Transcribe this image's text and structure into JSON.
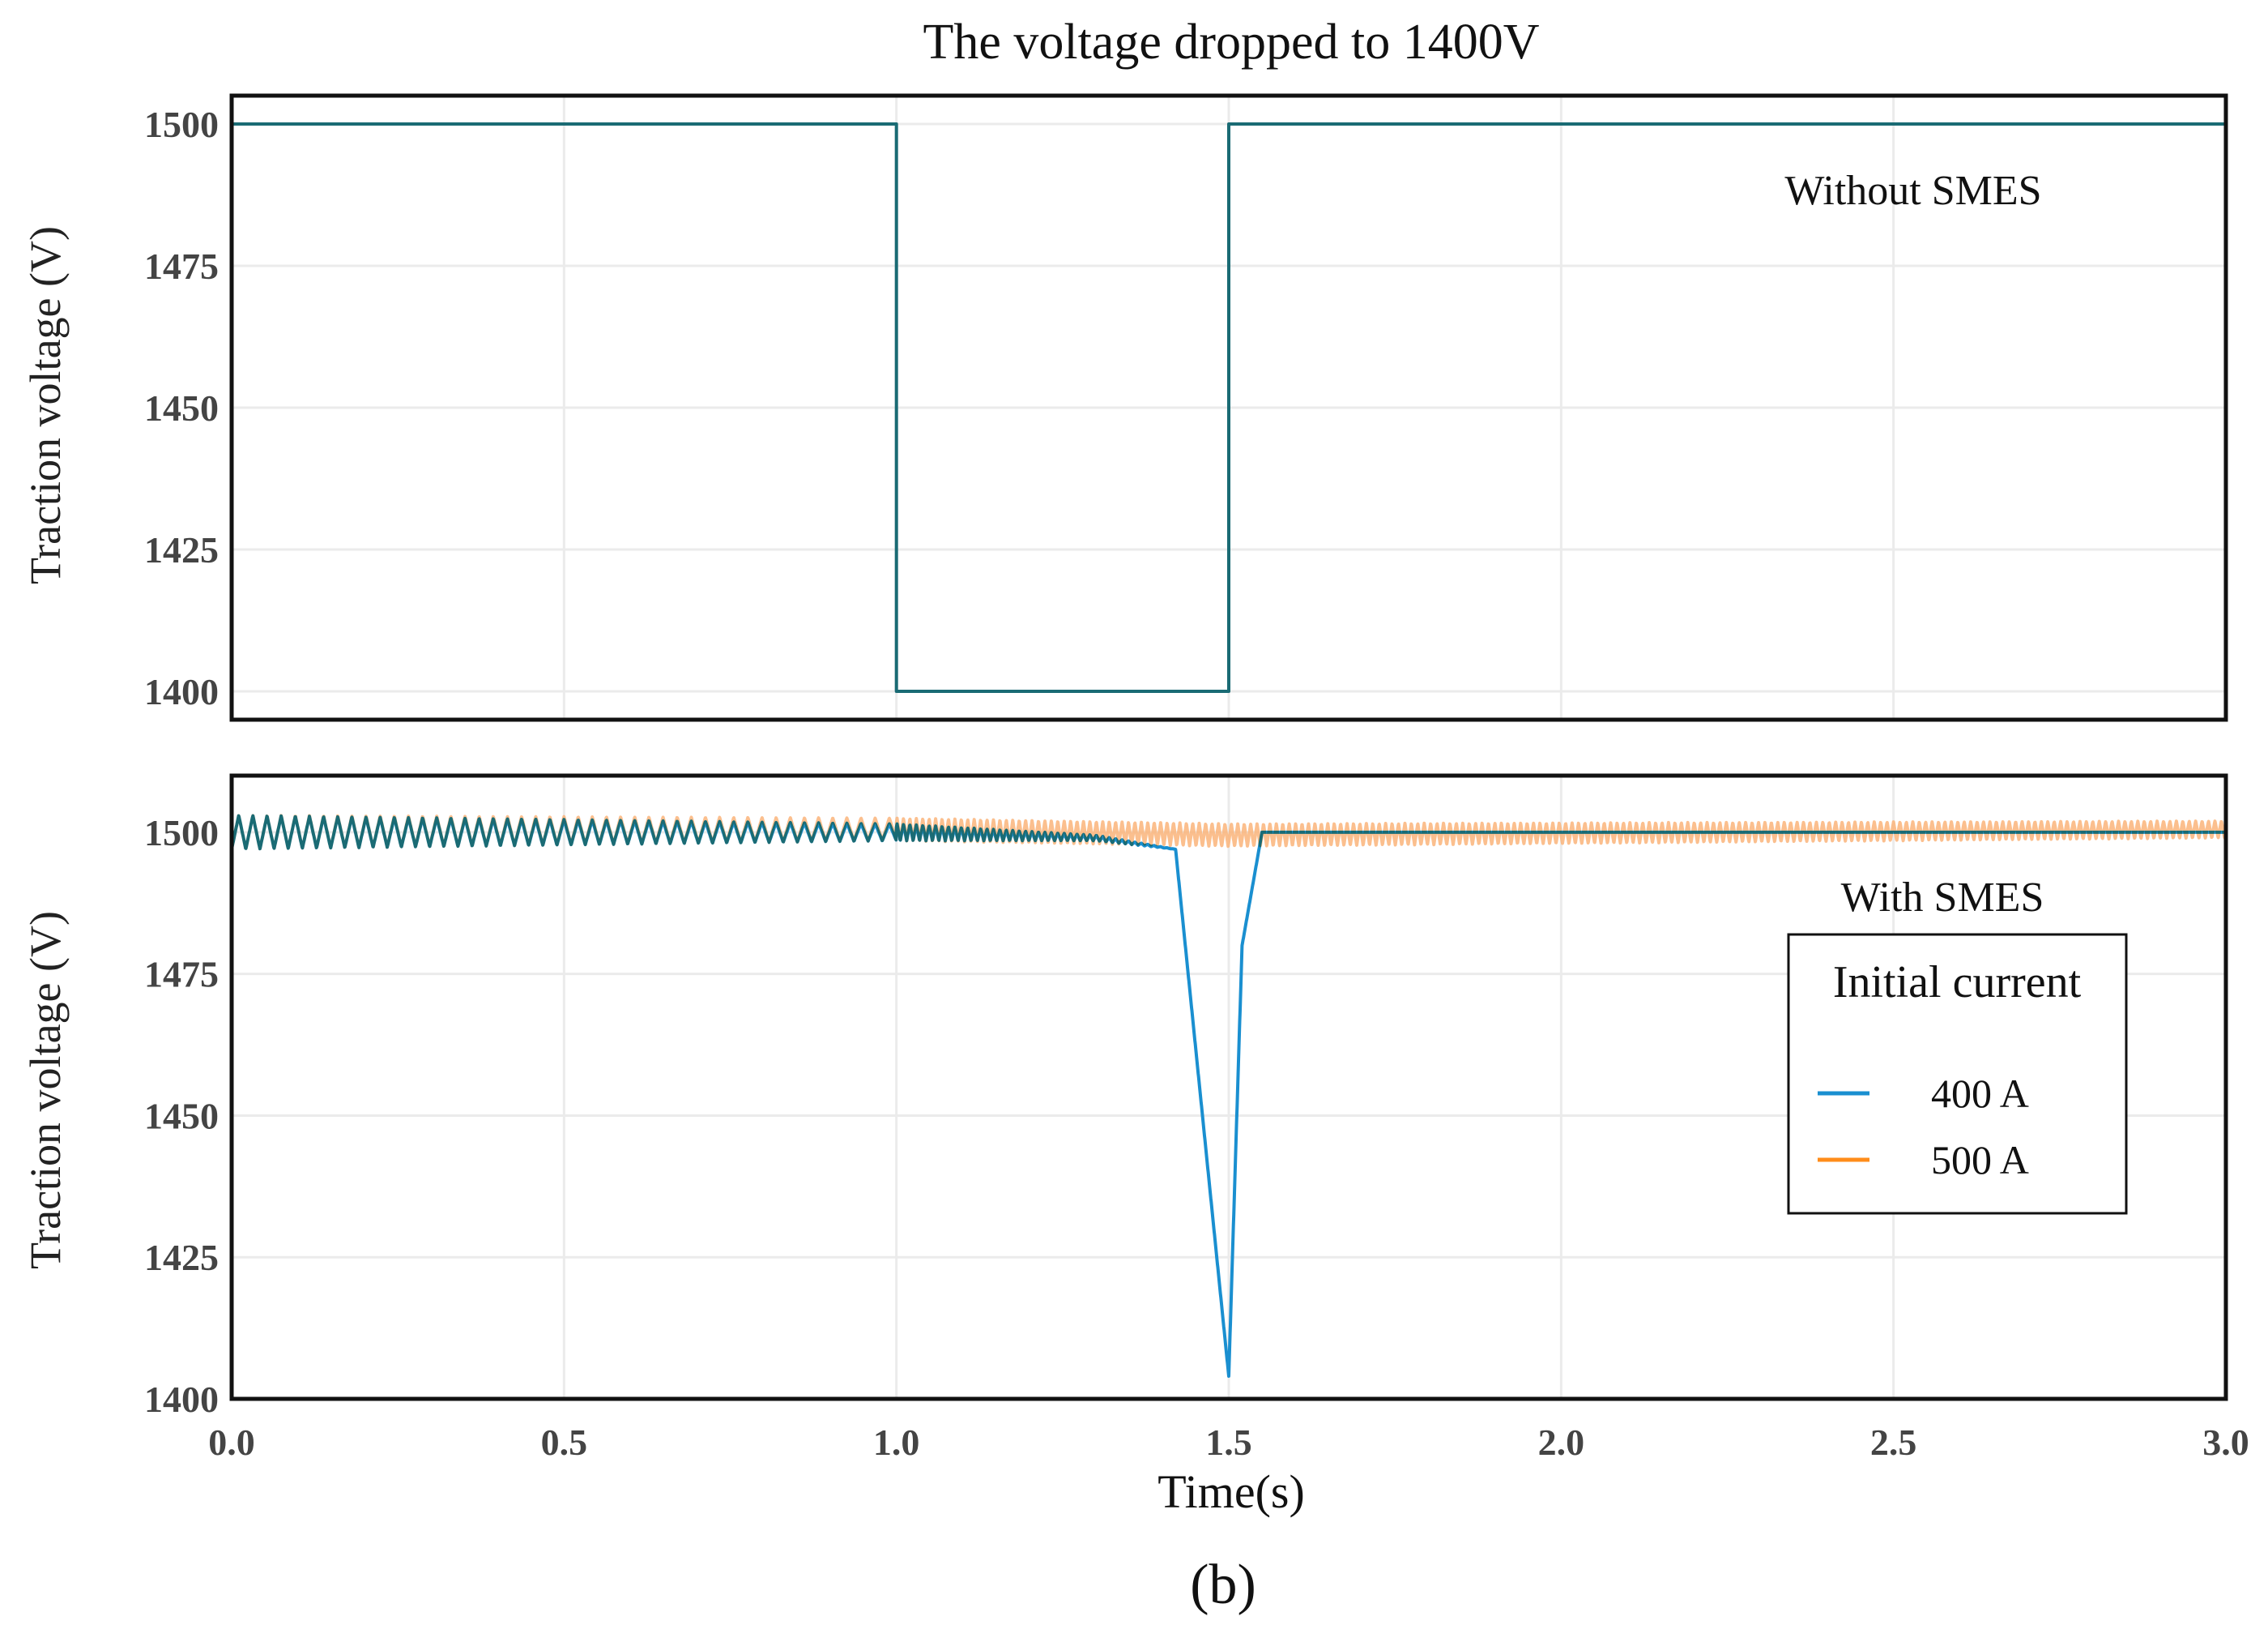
{
  "chart_data": [
    {
      "type": "line",
      "title": "The voltage dropped to 1400V",
      "annotation": "Without SMES",
      "xlabel": "Time(s)",
      "ylabel": "Traction voltage (V)",
      "xlim": [
        0,
        3.0
      ],
      "ylim": [
        1395,
        1505
      ],
      "xticks": [
        "0.0",
        "0.5",
        "1.0",
        "1.5",
        "2.0",
        "2.5",
        "3.0"
      ],
      "xtick_values": [
        0,
        0.5,
        1.0,
        1.5,
        2.0,
        2.5,
        3.0
      ],
      "yticks": [
        "1400",
        "1425",
        "1450",
        "1475",
        "1500"
      ],
      "ytick_values": [
        1400,
        1425,
        1450,
        1475,
        1500
      ],
      "grid": true,
      "series": [
        {
          "name": "400 A",
          "color": "#1a8fd0",
          "x": [
            0,
            1.0,
            1.0,
            1.5,
            1.5,
            3.0
          ],
          "y": [
            1500,
            1500,
            1400,
            1400,
            1500,
            1500
          ]
        },
        {
          "name": "500 A",
          "color": "#fbb47a",
          "x": [
            0,
            1.0,
            1.0,
            1.5,
            1.5,
            3.0
          ],
          "y": [
            1500,
            1500,
            1400,
            1400,
            1500,
            1500
          ]
        }
      ]
    },
    {
      "type": "line",
      "annotation": "With SMES",
      "xlabel": "Time(s)",
      "ylabel": "Traction voltage (V)",
      "xlim": [
        0,
        3.0
      ],
      "ylim": [
        1400,
        1510
      ],
      "xticks": [
        "0.0",
        "0.5",
        "1.0",
        "1.5",
        "2.0",
        "2.5",
        "3.0"
      ],
      "xtick_values": [
        0,
        0.5,
        1.0,
        1.5,
        2.0,
        2.5,
        3.0
      ],
      "yticks": [
        "1400",
        "1425",
        "1450",
        "1475",
        "1500"
      ],
      "ytick_values": [
        1400,
        1425,
        1450,
        1475,
        1500
      ],
      "grid": true,
      "legend": {
        "title": "Initial current",
        "placement": "right"
      },
      "series": [
        {
          "name": "400 A",
          "color": "#1a8fd0",
          "x": [
            0,
            1.0,
            1.3,
            1.42,
            1.5,
            1.52,
            1.55,
            3.0
          ],
          "y": [
            1500,
            1500,
            1499,
            1497,
            1404,
            1480,
            1500,
            1500
          ],
          "ripple_amplitude": [
            3,
            1.5,
            0.5,
            0,
            0,
            0,
            0,
            0
          ],
          "ripple_frequency_hz": 47
        },
        {
          "name": "500 A",
          "color": "#fbb47a",
          "x": [
            0,
            1.0,
            1.5,
            3.0
          ],
          "y": [
            1500,
            1500.5,
            1499.5,
            1500.5
          ],
          "ripple_amplitude": [
            3,
            2,
            2,
            1.5
          ],
          "ripple_frequency_hz": 47
        }
      ]
    }
  ],
  "caption": "(b)"
}
